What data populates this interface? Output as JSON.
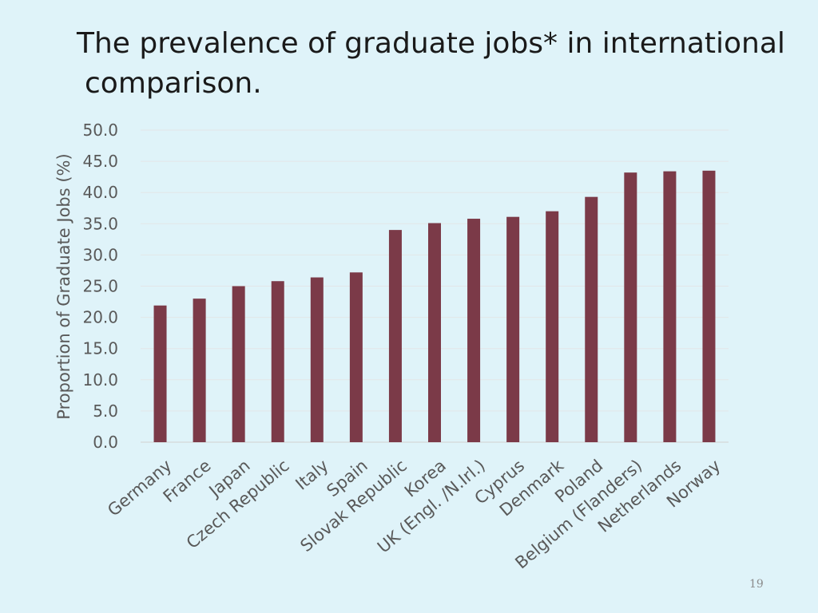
{
  "slide": {
    "title_line1": "The prevalence of graduate jobs* in international",
    "title_line2": "comparison.",
    "number": "19"
  },
  "chart_data": {
    "type": "bar",
    "title": "",
    "xlabel": "",
    "ylabel": "Proportion of Graduate Jobs (%)",
    "ylim": [
      0,
      50
    ],
    "ytick_step": 5,
    "ytick_labels": [
      "0.0",
      "5.0",
      "10.0",
      "15.0",
      "20.0",
      "25.0",
      "30.0",
      "35.0",
      "40.0",
      "45.0",
      "50.0"
    ],
    "grid": true,
    "legend": "none",
    "bar_color": "#7b3a48",
    "categories": [
      "Germany",
      "France",
      "Japan",
      "Czech Republic",
      "Italy",
      "Spain",
      "Slovak Republic",
      "Korea",
      "UK (Engl. /N.Irl.)",
      "Cyprus",
      "Denmark",
      "Poland",
      "Belgium (Flanders)",
      "Netherlands",
      "Norway"
    ],
    "values": [
      21.9,
      23.0,
      25.0,
      25.8,
      26.4,
      27.2,
      34.0,
      35.1,
      35.8,
      36.1,
      37.0,
      39.3,
      43.2,
      43.4,
      43.5
    ]
  }
}
